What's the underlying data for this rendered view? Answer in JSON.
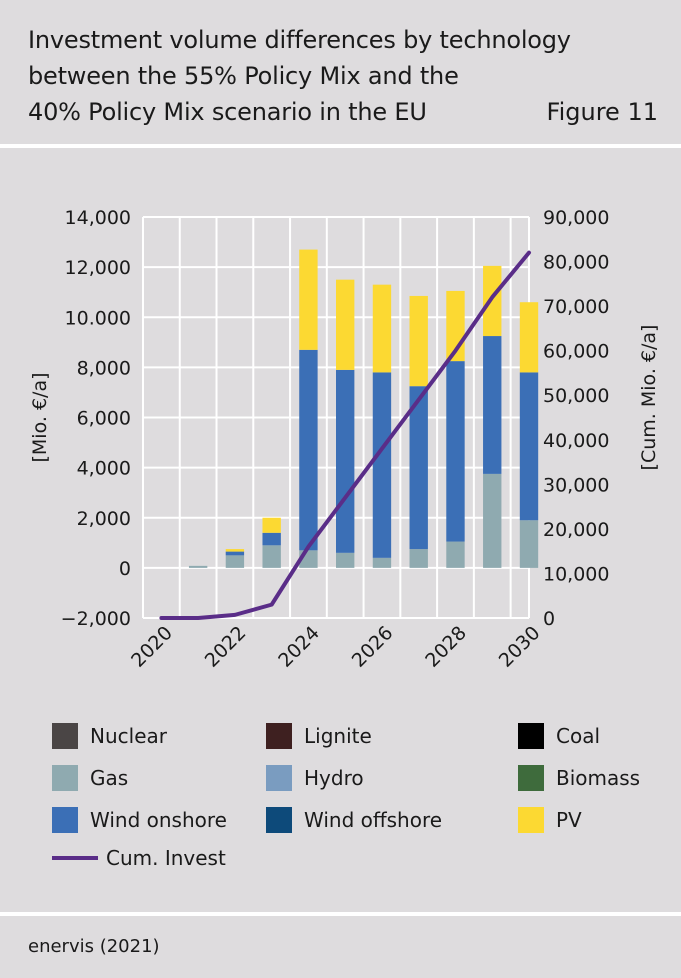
{
  "header": {
    "title_lines": [
      "Investment volume differences by technology",
      "between the 55% Policy Mix and the",
      "40% Policy Mix scenario in the EU"
    ],
    "figure_label": "Figure 11"
  },
  "footer": {
    "source": "enervis (2021)"
  },
  "chart_data": {
    "type": "bar",
    "stacked": true,
    "title": "",
    "categories": [
      "2020",
      "2021",
      "2022",
      "2023",
      "2024",
      "2025",
      "2026",
      "2027",
      "2028",
      "2029",
      "2030"
    ],
    "x_tick_labels": [
      "2020",
      "2022",
      "2024",
      "2026",
      "2028",
      "2030"
    ],
    "ylabel": "[Mio. €/a]",
    "ylim": [
      -2000,
      14000
    ],
    "y_ticks": [
      -2000,
      0,
      2000,
      4000,
      6000,
      8000,
      10000,
      12000,
      14000
    ],
    "y_tick_labels": [
      "−2,000",
      "0",
      "2,000",
      "4,000",
      "6,000",
      "8,000",
      "10.000",
      "12,000",
      "14,000"
    ],
    "y2label": "[Cum. Mio. €/a]",
    "y2lim": [
      0,
      90000
    ],
    "y2_ticks": [
      0,
      10000,
      20000,
      30000,
      40000,
      50000,
      60000,
      70000,
      80000,
      90000
    ],
    "y2_tick_labels": [
      "0",
      "10,000",
      "20,000",
      "30,000",
      "40,000",
      "50,000",
      "60,000",
      "70,000",
      "80,000",
      "90,000"
    ],
    "grid": true,
    "legend_position": "bottom",
    "series": [
      {
        "name": "Nuclear",
        "color": "#4a4545",
        "values": [
          0,
          0,
          0,
          0,
          0,
          0,
          0,
          0,
          0,
          0,
          0
        ]
      },
      {
        "name": "Lignite",
        "color": "#3e2020",
        "values": [
          0,
          0,
          0,
          0,
          0,
          0,
          0,
          0,
          0,
          0,
          0
        ]
      },
      {
        "name": "Coal",
        "color": "#000000",
        "values": [
          0,
          0,
          0,
          0,
          0,
          0,
          0,
          0,
          0,
          0,
          0
        ]
      },
      {
        "name": "Gas",
        "color": "#8faab0",
        "values": [
          0,
          80,
          500,
          900,
          700,
          600,
          400,
          750,
          1050,
          3750,
          1900
        ]
      },
      {
        "name": "Hydro",
        "color": "#7a9cc0",
        "values": [
          0,
          0,
          0,
          0,
          0,
          0,
          0,
          0,
          0,
          0,
          0
        ]
      },
      {
        "name": "Biomass",
        "color": "#3e6b3c",
        "values": [
          0,
          0,
          0,
          0,
          0,
          0,
          0,
          0,
          0,
          0,
          0
        ]
      },
      {
        "name": "Wind onshore",
        "color": "#3b6fb6",
        "values": [
          0,
          0,
          150,
          500,
          8000,
          7300,
          7400,
          6500,
          7200,
          5500,
          5900
        ]
      },
      {
        "name": "Wind offshore",
        "color": "#0d4a7a",
        "values": [
          0,
          0,
          0,
          0,
          0,
          0,
          0,
          0,
          0,
          0,
          0
        ]
      },
      {
        "name": "PV",
        "color": "#fcd932",
        "values": [
          0,
          0,
          100,
          600,
          4000,
          3600,
          3500,
          3600,
          2800,
          2800,
          2800
        ]
      }
    ],
    "line_series": {
      "name": "Cum. Invest",
      "color": "#5a2d88",
      "axis": "right",
      "values": [
        0,
        0,
        700,
        3000,
        16000,
        27000,
        38000,
        49000,
        60000,
        72000,
        82000
      ]
    }
  },
  "legend": {
    "items": [
      {
        "label": "Nuclear",
        "color": "#4a4545"
      },
      {
        "label": "Lignite",
        "color": "#3e2020"
      },
      {
        "label": "Coal",
        "color": "#000000"
      },
      {
        "label": "Gas",
        "color": "#8faab0"
      },
      {
        "label": "Hydro",
        "color": "#7a9cc0"
      },
      {
        "label": "Biomass",
        "color": "#3e6b3c"
      },
      {
        "label": "Wind onshore",
        "color": "#3b6fb6"
      },
      {
        "label": "Wind offshore",
        "color": "#0d4a7a"
      },
      {
        "label": "PV",
        "color": "#fcd932"
      }
    ],
    "line_item": {
      "label": "Cum. Invest",
      "color": "#5a2d88"
    }
  }
}
